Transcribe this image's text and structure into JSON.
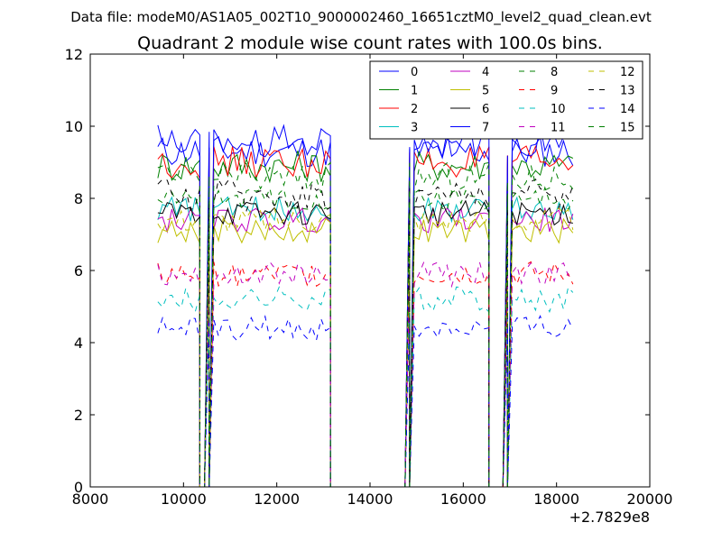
{
  "figure": {
    "suptitle": "Data file: modeM0/AS1A05_002T10_9000002460_16651cztM0_level2_quad_clean.evt"
  },
  "chart_data": {
    "type": "line",
    "title": "Quadrant 2 module wise count rates with 100.0s bins.",
    "xlabel": "",
    "ylabel": "",
    "xlim": [
      8000,
      20000
    ],
    "ylim": [
      0,
      12
    ],
    "x_offset_label": "+2.7829e8",
    "xticks": [
      8000,
      10000,
      12000,
      14000,
      16000,
      18000,
      20000
    ],
    "yticks": [
      0,
      2,
      4,
      6,
      8,
      10,
      12
    ],
    "legend_position": "upper-right",
    "legend_columns": 4,
    "segments": [
      {
        "start": 9450,
        "end": 10350,
        "step": 100
      },
      {
        "start": 10550,
        "end": 13150,
        "step": 100
      },
      {
        "start": 14850,
        "end": 16550,
        "step": 100
      },
      {
        "start": 16950,
        "end": 18350,
        "step": 100
      }
    ],
    "gaps": [
      {
        "start": 10350,
        "end": 10550,
        "x": [
          10350,
          10400,
          10450,
          10550
        ]
      },
      {
        "start": 13150,
        "end": 14850,
        "x": [
          13150,
          13250,
          13350,
          14750,
          14850
        ]
      },
      {
        "start": 16550,
        "end": 16950,
        "x": [
          16550,
          16650,
          16750,
          16850,
          16950
        ]
      }
    ],
    "series": [
      {
        "name": "0",
        "color": "#0000ff",
        "dash": "solid",
        "level": 9.3
      },
      {
        "name": "1",
        "color": "#008000",
        "dash": "solid",
        "level": 8.9
      },
      {
        "name": "2",
        "color": "#ff0000",
        "dash": "solid",
        "level": 9.0
      },
      {
        "name": "3",
        "color": "#00bfbf",
        "dash": "solid",
        "level": 7.7
      },
      {
        "name": "4",
        "color": "#bf00bf",
        "dash": "solid",
        "level": 7.4
      },
      {
        "name": "5",
        "color": "#bfbf00",
        "dash": "solid",
        "level": 7.1
      },
      {
        "name": "6",
        "color": "#000000",
        "dash": "solid",
        "level": 7.6
      },
      {
        "name": "7",
        "color": "#0000ff",
        "dash": "solid",
        "level": 9.6
      },
      {
        "name": "8",
        "color": "#008000",
        "dash": "dashed",
        "level": 8.0
      },
      {
        "name": "9",
        "color": "#ff0000",
        "dash": "dashed",
        "level": 5.9
      },
      {
        "name": "10",
        "color": "#00bfbf",
        "dash": "dashed",
        "level": 5.2
      },
      {
        "name": "11",
        "color": "#bf00bf",
        "dash": "dashed",
        "level": 5.9
      },
      {
        "name": "12",
        "color": "#bfbf00",
        "dash": "dashed",
        "level": 7.4
      },
      {
        "name": "13",
        "color": "#000000",
        "dash": "dashed",
        "level": 8.1
      },
      {
        "name": "14",
        "color": "#0000ff",
        "dash": "dashed",
        "level": 4.4
      },
      {
        "name": "15",
        "color": "#008000",
        "dash": "dashed",
        "level": 8.6
      }
    ]
  }
}
